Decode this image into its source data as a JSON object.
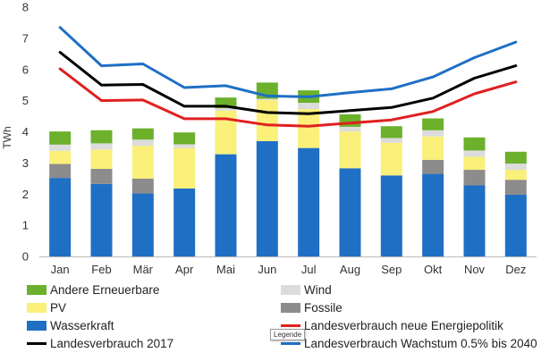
{
  "chart_data": {
    "type": "bar",
    "stacked": true,
    "ylabel": "TWh",
    "ylim": [
      0,
      8
    ],
    "yticks": [
      0,
      1,
      2,
      3,
      4,
      5,
      6,
      7,
      8
    ],
    "grid": false,
    "legend_position": "bottom",
    "categories": [
      "Jan",
      "Feb",
      "Mär",
      "Apr",
      "Mai",
      "Jun",
      "Jul",
      "Aug",
      "Sep",
      "Okt",
      "Nov",
      "Dez"
    ],
    "series": [
      {
        "name": "Wasserkraft",
        "kind": "bar",
        "color": "#1f6fc5",
        "values": [
          2.52,
          2.33,
          2.02,
          2.18,
          3.28,
          3.7,
          3.48,
          2.83,
          2.6,
          2.65,
          2.28,
          1.98
        ]
      },
      {
        "name": "Fossile",
        "kind": "bar",
        "color": "#8c8c8c",
        "values": [
          0.45,
          0.48,
          0.48,
          0.0,
          0.0,
          0.0,
          0.0,
          0.0,
          0.0,
          0.45,
          0.5,
          0.48
        ]
      },
      {
        "name": "PV",
        "kind": "bar",
        "color": "#faf07a",
        "values": [
          0.42,
          0.62,
          1.05,
          1.3,
          1.4,
          1.32,
          1.25,
          1.18,
          1.05,
          0.75,
          0.42,
          0.32
        ]
      },
      {
        "name": "Wind",
        "kind": "bar",
        "color": "#dcdcdc",
        "values": [
          0.2,
          0.2,
          0.2,
          0.12,
          0.08,
          0.04,
          0.2,
          0.15,
          0.15,
          0.2,
          0.2,
          0.2
        ]
      },
      {
        "name": "Andere Erneuerbare",
        "kind": "bar",
        "color": "#6cb02c",
        "values": [
          0.42,
          0.42,
          0.36,
          0.38,
          0.34,
          0.52,
          0.4,
          0.4,
          0.38,
          0.38,
          0.42,
          0.38
        ]
      },
      {
        "name": "Landesverbrauch 2017",
        "kind": "line",
        "color": "#000000",
        "values": [
          6.55,
          5.5,
          5.52,
          4.82,
          4.82,
          4.62,
          4.58,
          4.68,
          4.78,
          5.08,
          5.72,
          6.12
        ]
      },
      {
        "name": "Landesverbrauch neue Energiepolitik",
        "kind": "line",
        "color": "#e02020",
        "values": [
          6.02,
          5.0,
          5.02,
          4.42,
          4.42,
          4.22,
          4.18,
          4.28,
          4.38,
          4.65,
          5.22,
          5.6
        ]
      },
      {
        "name": "Landesverbrauch Wachstum 0.5% bis 2040",
        "kind": "line",
        "color": "#1f6fc5",
        "values": [
          7.35,
          6.12,
          6.18,
          5.42,
          5.48,
          5.15,
          5.12,
          5.26,
          5.38,
          5.76,
          6.38,
          6.88
        ]
      }
    ]
  },
  "legend": {
    "items": [
      {
        "label": "Andere Erneuerbare",
        "color": "#6cb02c",
        "kind": "box"
      },
      {
        "label": "Wind",
        "color": "#dcdcdc",
        "kind": "box"
      },
      {
        "label": "PV",
        "color": "#faf07a",
        "kind": "box"
      },
      {
        "label": "Fossile",
        "color": "#8c8c8c",
        "kind": "box"
      },
      {
        "label": "Wasserkraft",
        "color": "#1f6fc5",
        "kind": "box"
      },
      {
        "label": "Landesverbrauch neue Energiepolitik",
        "color": "#e02020",
        "kind": "line"
      },
      {
        "label": "Landesverbrauch 2017",
        "color": "#000000",
        "kind": "line"
      },
      {
        "label": "Landesverbrauch Wachstum 0.5% bis 2040",
        "color": "#1f6fc5",
        "kind": "line"
      }
    ],
    "tooltip": "Legende"
  }
}
